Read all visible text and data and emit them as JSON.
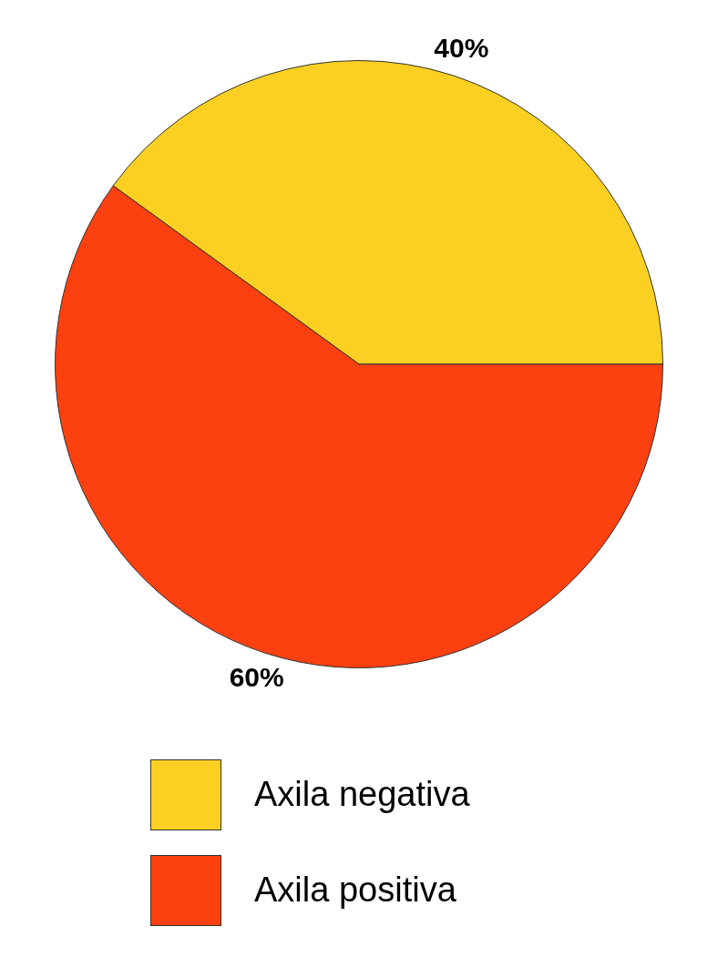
{
  "chart_data": {
    "type": "pie",
    "categories": [
      "Axila negativa",
      "Axila positiva"
    ],
    "values": [
      40,
      60
    ],
    "colors": [
      "#fcd022",
      "#fc4010"
    ],
    "value_labels": [
      "40%",
      "60%"
    ],
    "legend": "bottom"
  }
}
